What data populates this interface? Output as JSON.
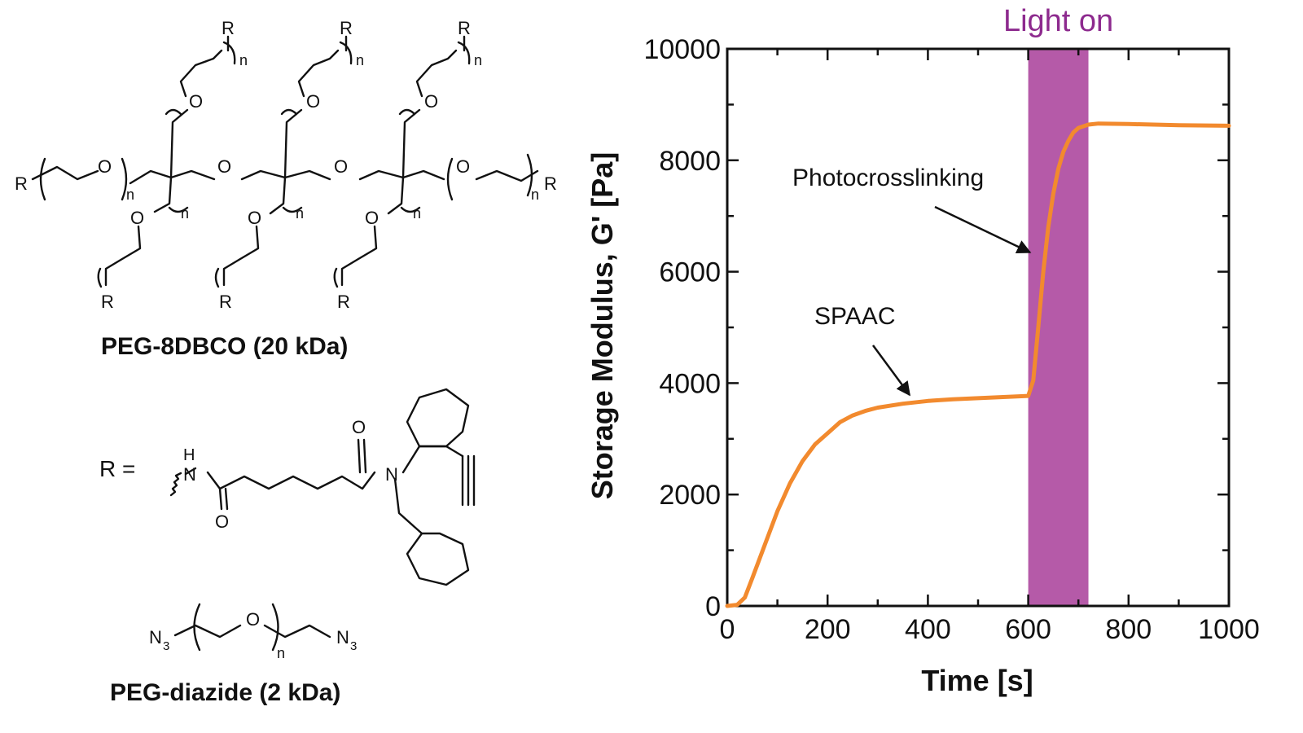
{
  "chem": {
    "r": "R",
    "o": "O",
    "n": "n",
    "h": "H",
    "nitrogen": "N",
    "azide_n": "N",
    "azide_sub": "3",
    "r_equals": "R =",
    "peg8_caption": "PEG-8DBCO (20 kDa)",
    "diazide_caption": "PEG-diazide (2 kDa)"
  },
  "chart_data": {
    "type": "line",
    "xlabel": "Time [s]",
    "ylabel": "Storage Modulus, G' [Pa]",
    "xlim": [
      0,
      1000
    ],
    "ylim": [
      0,
      10000
    ],
    "xticks": [
      0,
      200,
      400,
      600,
      800,
      1000
    ],
    "yticks": [
      0,
      2000,
      4000,
      6000,
      8000,
      10000
    ],
    "grid": false,
    "series": [
      {
        "color": "#f28a2e",
        "x": [
          0,
          20,
          35,
          50,
          75,
          100,
          125,
          150,
          175,
          200,
          225,
          250,
          275,
          300,
          350,
          400,
          450,
          500,
          550,
          600,
          610,
          620,
          630,
          640,
          650,
          660,
          670,
          680,
          690,
          700,
          720,
          740,
          800,
          900,
          1000
        ],
        "y": [
          0,
          20,
          150,
          500,
          1100,
          1700,
          2200,
          2600,
          2900,
          3100,
          3300,
          3420,
          3500,
          3560,
          3630,
          3680,
          3710,
          3730,
          3750,
          3770,
          4050,
          5000,
          6000,
          6800,
          7400,
          7850,
          8150,
          8350,
          8500,
          8580,
          8640,
          8660,
          8650,
          8630,
          8620
        ]
      }
    ],
    "shaded_region": {
      "label": "Light on",
      "x_start": 600,
      "x_end": 720,
      "color": "#b55aa8"
    },
    "annotations": [
      {
        "text": "Photocrosslinking",
        "points_to_x": 610,
        "points_to_y": 6200
      },
      {
        "text": "SPAAC",
        "points_to_x": 370,
        "points_to_y": 3700
      }
    ]
  }
}
